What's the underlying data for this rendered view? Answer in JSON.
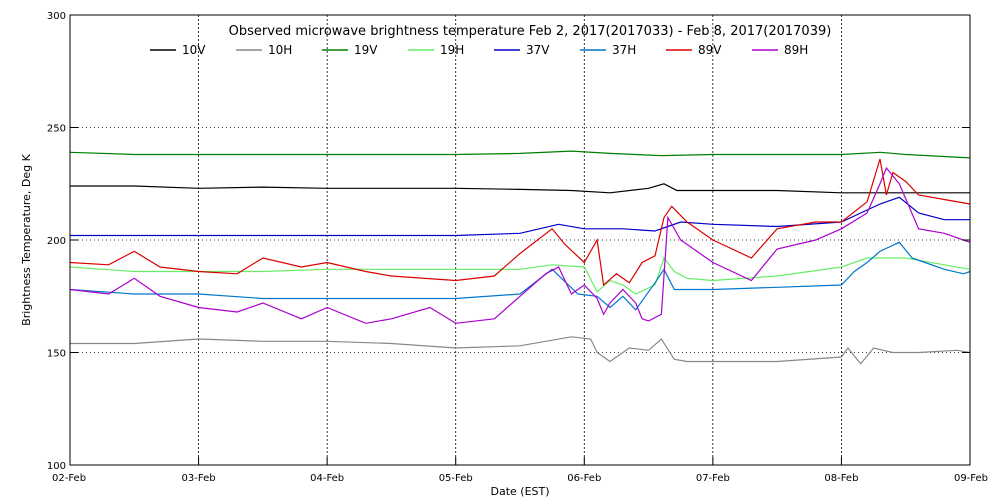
{
  "chart_data": {
    "type": "line",
    "title": "Observed microwave brightness temperature Feb  2, 2017(2017033) - Feb  8, 2017(2017039)",
    "xlabel": "Date (EST)",
    "ylabel": "Brightness Temperature, Deg K",
    "ylim": [
      100,
      300
    ],
    "yticks": [
      100,
      150,
      200,
      250,
      300
    ],
    "xlim": [
      0,
      7
    ],
    "xticks": [
      {
        "x": 0,
        "label": "02-Feb"
      },
      {
        "x": 1,
        "label": "03-Feb"
      },
      {
        "x": 2,
        "label": "04-Feb"
      },
      {
        "x": 3,
        "label": "05-Feb"
      },
      {
        "x": 4,
        "label": "06-Feb"
      },
      {
        "x": 5,
        "label": "07-Feb"
      },
      {
        "x": 6,
        "label": "08-Feb"
      },
      {
        "x": 7,
        "label": "09-Feb"
      }
    ],
    "grid": "dotted",
    "legend_position": "top",
    "series": [
      {
        "name": "10V",
        "color": "#000000",
        "x": [
          0,
          0.5,
          1,
          1.5,
          2,
          2.5,
          3,
          3.5,
          3.9,
          4.2,
          4.5,
          4.62,
          4.72,
          5,
          5.5,
          6,
          6.3,
          6.5,
          7
        ],
        "y": [
          224,
          224,
          223,
          223.5,
          223,
          223,
          223,
          222.5,
          222,
          221,
          223,
          225,
          222,
          222,
          222,
          221,
          221,
          221,
          221
        ]
      },
      {
        "name": "10H",
        "color": "#888888",
        "x": [
          0,
          0.5,
          1,
          1.5,
          2,
          2.5,
          3,
          3.5,
          3.9,
          4.05,
          4.1,
          4.2,
          4.35,
          4.5,
          4.6,
          4.7,
          4.8,
          5,
          5.5,
          6,
          6.05,
          6.15,
          6.25,
          6.4,
          6.6,
          6.9,
          7
        ],
        "y": [
          154,
          154,
          156,
          155,
          155,
          154,
          152,
          153,
          157,
          156,
          150,
          146,
          152,
          151,
          156,
          147,
          146,
          146,
          146,
          148,
          152,
          145,
          152,
          150,
          150,
          151,
          150
        ]
      },
      {
        "name": "19V",
        "color": "#008000",
        "x": [
          0,
          0.5,
          1,
          1.5,
          2,
          2.5,
          3,
          3.5,
          3.9,
          4.2,
          4.6,
          5,
          5.5,
          6,
          6.3,
          6.5,
          7
        ],
        "y": [
          239,
          238,
          238,
          238,
          238,
          238,
          238,
          238.5,
          239.5,
          238.5,
          237.5,
          238,
          238,
          238,
          239,
          238,
          236.5
        ]
      },
      {
        "name": "19H",
        "color": "#66ee66",
        "x": [
          0,
          0.5,
          1,
          1.5,
          2,
          2.5,
          3,
          3.5,
          3.75,
          4.0,
          4.1,
          4.2,
          4.3,
          4.4,
          4.55,
          4.62,
          4.7,
          4.8,
          5,
          5.5,
          6,
          6.2,
          6.5,
          6.8,
          7
        ],
        "y": [
          188,
          186,
          186,
          186,
          187,
          187,
          187,
          187,
          189,
          188,
          177,
          182,
          180,
          176,
          180,
          192,
          186,
          183,
          182,
          184,
          188,
          192,
          192,
          189,
          187
        ]
      },
      {
        "name": "37V",
        "color": "#0000cc",
        "x": [
          0,
          0.5,
          1,
          1.5,
          2,
          2.5,
          3,
          3.5,
          3.8,
          4.0,
          4.3,
          4.55,
          4.65,
          4.75,
          5,
          5.5,
          6,
          6.3,
          6.45,
          6.6,
          6.8,
          7
        ],
        "y": [
          202,
          202,
          202,
          202,
          202,
          202,
          202,
          203,
          207,
          205,
          205,
          204,
          206,
          208,
          207,
          206,
          208,
          216,
          219,
          212,
          209,
          209
        ]
      },
      {
        "name": "37H",
        "color": "#0077cc",
        "x": [
          0,
          0.5,
          1,
          1.5,
          2,
          2.5,
          3,
          3.5,
          3.75,
          3.95,
          4.1,
          4.2,
          4.3,
          4.4,
          4.55,
          4.62,
          4.7,
          4.85,
          5,
          5.5,
          6,
          6.1,
          6.2,
          6.3,
          6.45,
          6.55,
          6.65,
          6.8,
          6.95,
          7
        ],
        "y": [
          178,
          176,
          176,
          174,
          174,
          174,
          174,
          176,
          187,
          176,
          175,
          170,
          175,
          169,
          181,
          187,
          178,
          178,
          178,
          179,
          180,
          186,
          190,
          195,
          199,
          192,
          190,
          187,
          185,
          186
        ]
      },
      {
        "name": "89V",
        "color": "#dd0000",
        "x": [
          0,
          0.3,
          0.5,
          0.7,
          1,
          1.3,
          1.5,
          1.8,
          2,
          2.3,
          2.5,
          3,
          3.3,
          3.5,
          3.75,
          3.85,
          4.0,
          4.1,
          4.15,
          4.25,
          4.35,
          4.45,
          4.55,
          4.62,
          4.68,
          4.8,
          5,
          5.3,
          5.5,
          5.8,
          6,
          6.2,
          6.3,
          6.35,
          6.4,
          6.5,
          6.6,
          6.8,
          7
        ],
        "y": [
          190,
          189,
          195,
          188,
          186,
          185,
          192,
          188,
          190,
          186,
          184,
          182,
          184,
          194,
          205,
          198,
          190,
          200,
          180,
          185,
          181,
          190,
          193,
          210,
          215,
          208,
          200,
          192,
          205,
          208,
          208,
          217,
          236,
          220,
          230,
          226,
          220,
          218,
          216
        ]
      },
      {
        "name": "89H",
        "color": "#aa00cc",
        "x": [
          0,
          0.3,
          0.5,
          0.7,
          1,
          1.3,
          1.5,
          1.8,
          2,
          2.3,
          2.5,
          2.8,
          3,
          3.3,
          3.5,
          3.7,
          3.8,
          3.9,
          4.0,
          4.1,
          4.15,
          4.2,
          4.3,
          4.4,
          4.45,
          4.5,
          4.6,
          4.65,
          4.75,
          5,
          5.3,
          5.5,
          5.8,
          6,
          6.2,
          6.3,
          6.35,
          6.45,
          6.6,
          6.8,
          7
        ],
        "y": [
          178,
          176,
          183,
          175,
          170,
          168,
          172,
          165,
          170,
          163,
          165,
          170,
          163,
          165,
          175,
          185,
          188,
          176,
          180,
          174,
          167,
          172,
          178,
          172,
          165,
          164,
          167,
          210,
          200,
          190,
          182,
          196,
          200,
          205,
          212,
          225,
          232,
          225,
          205,
          203,
          199
        ]
      }
    ]
  }
}
